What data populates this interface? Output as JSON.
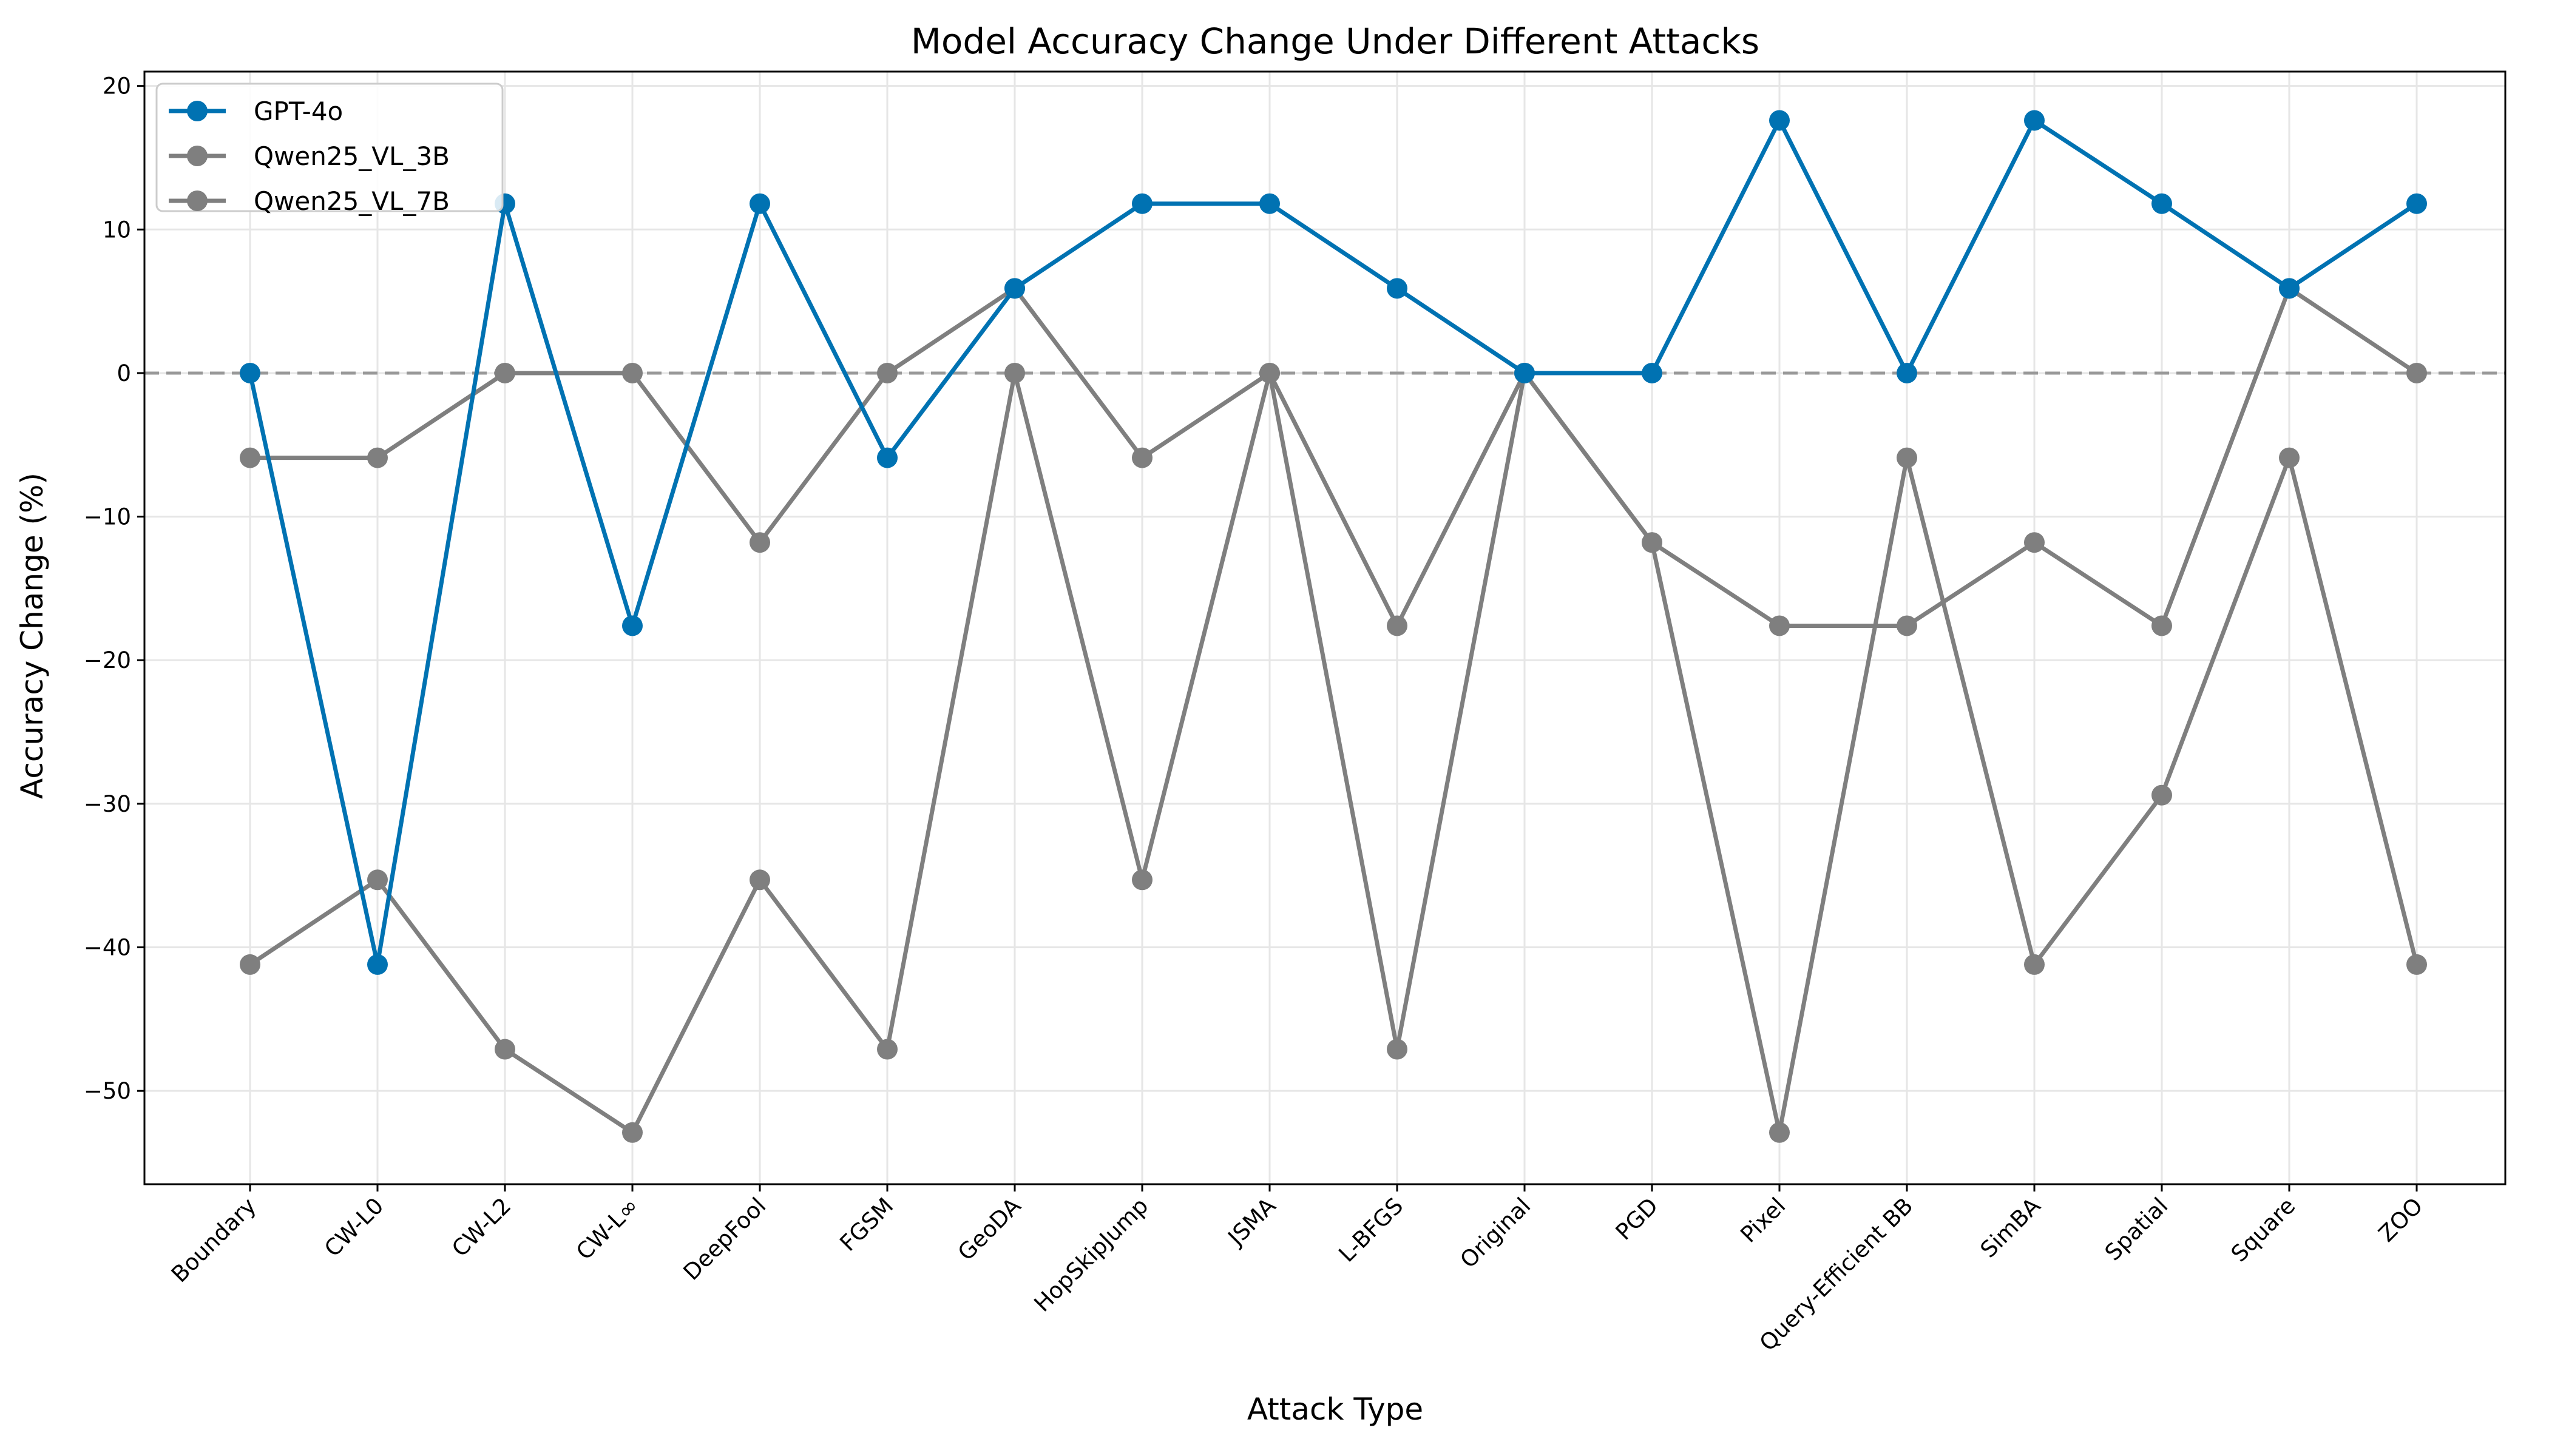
{
  "chart_data": {
    "type": "line",
    "title": "Model Accuracy Change Under Different Attacks",
    "xlabel": "Attack Type",
    "ylabel": "Accuracy Change (%)",
    "ylim": [
      -56.5,
      21
    ],
    "yticks": [
      20,
      10,
      0,
      -10,
      -20,
      -30,
      -40,
      -50
    ],
    "ytick_labels": [
      "20",
      "10",
      "0",
      "−10",
      "−20",
      "−30",
      "−40",
      "−50"
    ],
    "grid": true,
    "legend_position": "top-left",
    "reference_line": 0,
    "categories": [
      "Boundary",
      "CW-L0",
      "CW-L2",
      "CW-L∞",
      "DeepFool",
      "FGSM",
      "GeoDA",
      "HopSkipJump",
      "JSMA",
      "L-BFGS",
      "Original",
      "PGD",
      "Pixel",
      "Query-Efficient BB",
      "SimBA",
      "Spatial",
      "Square",
      "ZOO"
    ],
    "series": [
      {
        "name": "GPT-4o",
        "color": "#0072B2",
        "values": [
          0,
          -41.2,
          11.8,
          -17.6,
          11.8,
          -5.9,
          5.9,
          11.8,
          11.8,
          5.9,
          0,
          0,
          17.6,
          0,
          17.6,
          11.8,
          5.9,
          11.8
        ]
      },
      {
        "name": "Qwen25_VL_3B",
        "color": "#7F7F7F",
        "values": [
          -5.9,
          -5.9,
          0,
          0,
          -11.8,
          0,
          5.9,
          -5.9,
          0,
          -17.6,
          0,
          -11.8,
          -17.6,
          -17.6,
          -11.8,
          -17.6,
          5.9,
          0
        ]
      },
      {
        "name": "Qwen25_VL_7B",
        "color": "#7F7F7F",
        "values": [
          -41.2,
          -35.3,
          -47.1,
          -52.9,
          -35.3,
          -47.1,
          0,
          -35.3,
          0,
          -47.1,
          0,
          -11.8,
          -52.9,
          -5.9,
          -41.2,
          -29.4,
          -5.9,
          -41.2
        ]
      }
    ]
  }
}
